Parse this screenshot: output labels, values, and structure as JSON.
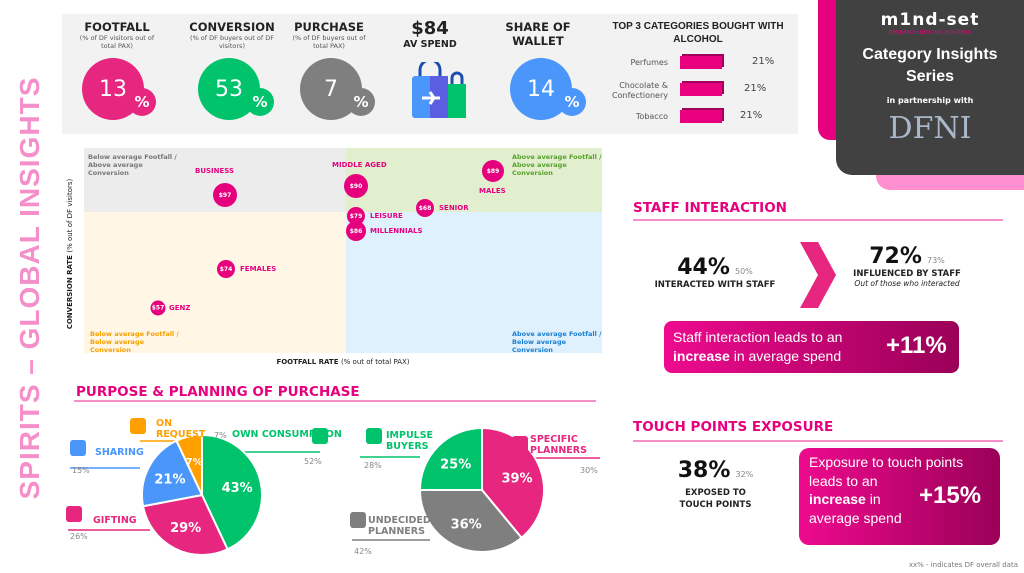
{
  "side_title": "SPIRITS – GLOBAL INSIGHTS",
  "kpis": [
    {
      "title": "FOOTFALL",
      "sub": "(% of DF visitors out of total PAX)",
      "value": "13",
      "unit": "%",
      "color": "#e6267f"
    },
    {
      "title": "CONVERSION",
      "sub": "(% of DF buyers out of DF visitors)",
      "value": "53",
      "unit": "%",
      "color": "#00c36b"
    },
    {
      "title": "PURCHASE",
      "sub": "(% of DF buyers out of total PAX)",
      "value": "7",
      "unit": "%",
      "color": "#7f7f7f"
    },
    {
      "title": "SHARE OF WALLET",
      "value": "14",
      "unit": "%",
      "color": "#4a96fa"
    }
  ],
  "av_spend": {
    "value": "$84",
    "label": "AV SPEND",
    "icon": "shopping-bag-plane-icon"
  },
  "top3": {
    "title": "TOP 3 CATEGORIES BOUGHT WITH ALCOHOL",
    "items": [
      {
        "name": "Perfumes",
        "value": "21%"
      },
      {
        "name": "Chocolate & Confectionery",
        "value": "21%"
      },
      {
        "name": "Tobacco",
        "value": "21%"
      }
    ]
  },
  "brand": {
    "logo": "m1nd-set",
    "tagline": "RESEARCH BEYOND BORDERS",
    "title": "Category Insights Series",
    "partner_text": "in partnership with",
    "partner_logo": "DFNI"
  },
  "chart_data": [
    {
      "type": "scatter",
      "xlabel": "FOOTFALL RATE",
      "xlabel_note": "(% out of total PAX)",
      "ylabel": "CONVERSION RATE",
      "ylabel_note": "(% out of DF visitors)",
      "quadrants": {
        "tl": "Below average Footfall / Above average Conversion",
        "tr": "Above average Footfall / Above average Conversion",
        "bl": "Below average Footfall / Below average Conversion",
        "br": "Above average Footfall / Below average Conversion"
      },
      "points": [
        {
          "label": "BUSINESS",
          "value": "$97"
        },
        {
          "label": "MIDDLE AGED",
          "value": "$90"
        },
        {
          "label": "MALES",
          "value": "$89"
        },
        {
          "label": "SENIOR",
          "value": "$68"
        },
        {
          "label": "LEISURE",
          "value": "$79"
        },
        {
          "label": "MILLENNIALS",
          "value": "$86"
        },
        {
          "label": "FEMALES",
          "value": "$74"
        },
        {
          "label": "GENZ",
          "value": "$57"
        }
      ]
    },
    {
      "type": "pie",
      "title": "PURPOSE & PLANNING OF PURCHASE",
      "slices": [
        {
          "label": "OWN CONSUMPTION",
          "value": 43,
          "text": "43%",
          "overall": "52%",
          "color": "#00c36b",
          "icon": "person-icon"
        },
        {
          "label": "GIFTING",
          "value": 29,
          "text": "29%",
          "overall": "26%",
          "color": "#e6267f",
          "icon": "gift-icon"
        },
        {
          "label": "SHARING",
          "value": 21,
          "text": "21%",
          "overall": "15%",
          "color": "#4a96fa",
          "icon": "family-icon"
        },
        {
          "label": "ON REQUEST",
          "value": 7,
          "text": "7%",
          "overall": "7%",
          "color": "#ff9f00",
          "icon": "chat-icon"
        }
      ]
    },
    {
      "type": "pie",
      "slices": [
        {
          "label": "SPECIFIC PLANNERS",
          "value": 39,
          "text": "39%",
          "overall": "30%",
          "color": "#e6267f",
          "icon": "clipboard-icon"
        },
        {
          "label": "UNDECIDED PLANNERS",
          "value": 36,
          "text": "36%",
          "overall": "42%",
          "color": "#7f7f7f",
          "icon": "head-gears-icon"
        },
        {
          "label": "IMPULSE BUYERS",
          "value": 25,
          "text": "25%",
          "overall": "28%",
          "color": "#00c36b",
          "icon": "money-icon"
        }
      ]
    }
  ],
  "staff": {
    "title": "STAFF INTERACTION",
    "interacted": "44%",
    "interacted_overall": "50%",
    "interacted_label": "INTERACTED WITH STAFF",
    "influenced": "72%",
    "influenced_overall": "73%",
    "influenced_label": "INFLUENCED BY STAFF",
    "influenced_note": "Out of those who interacted",
    "box_a": "Staff interaction leads to an",
    "box_b": "increase",
    "box_c": " in average spend",
    "box_value": "+11%"
  },
  "touch": {
    "title": "TOUCH POINTS EXPOSURE",
    "value": "38%",
    "overall": "32%",
    "label": "EXPOSED TO TOUCH POINTS",
    "box_a": "Exposure to touch points leads to an",
    "box_b": "increase",
    "box_c": " in average spend",
    "box_value": "+15%"
  },
  "footnote": "xx% - indicates DF overall data"
}
